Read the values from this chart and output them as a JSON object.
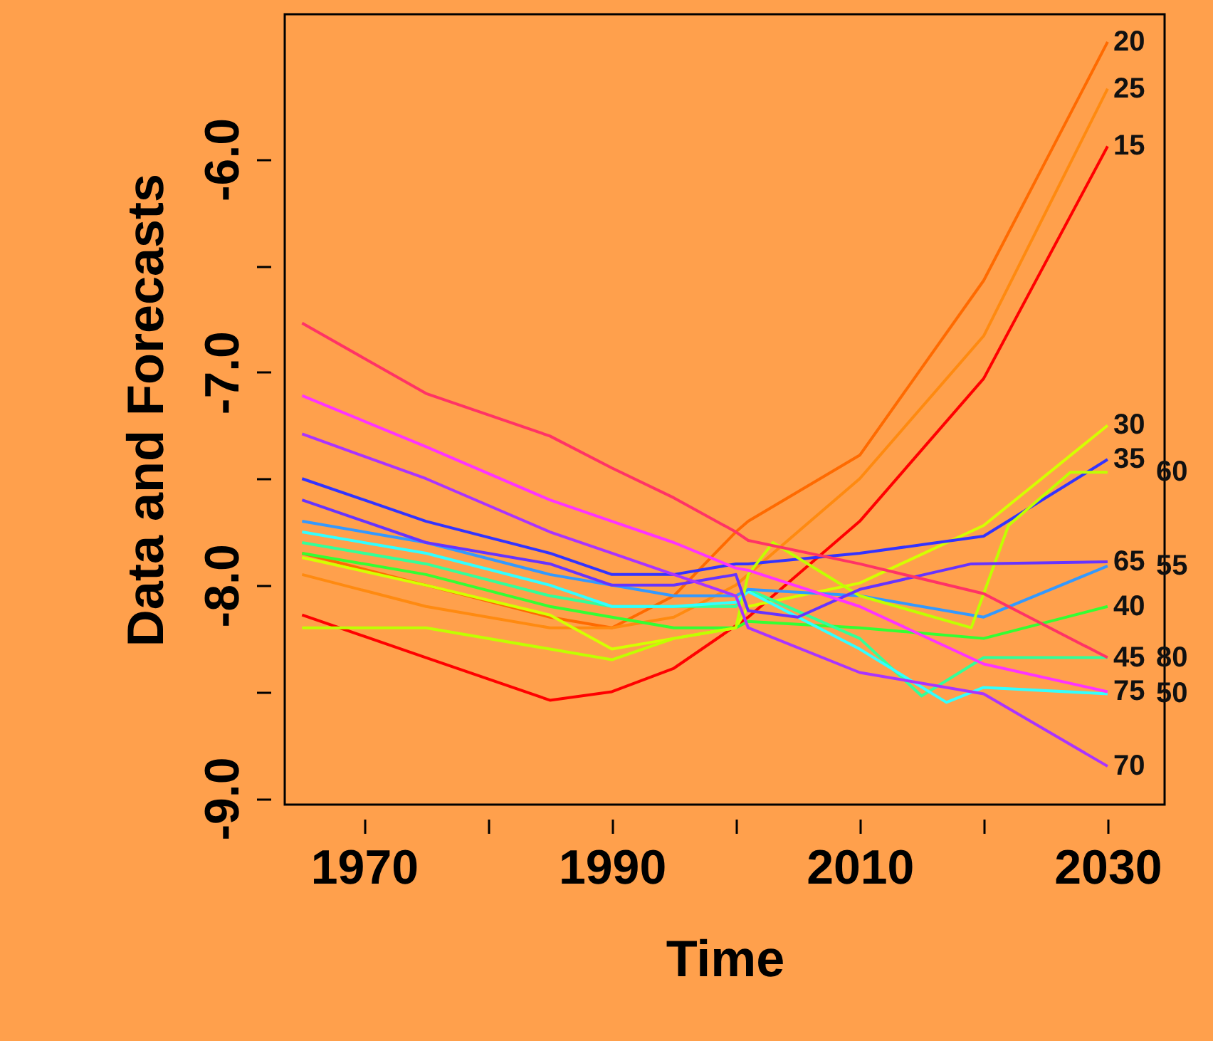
{
  "chart_data": {
    "type": "line",
    "xlabel": "Time",
    "ylabel": "Data and Forecasts",
    "line_style": "solid",
    "xlim": [
      1963.6,
      2034.6
    ],
    "ylim": [
      -9.03,
      -5.32
    ],
    "xticks": [
      1970,
      {
        "value": 1980,
        "label": null
      },
      1990,
      {
        "value": 2000,
        "label": null
      },
      2010,
      {
        "value": 2020,
        "label": null
      },
      2030
    ],
    "yticks": [
      {
        "value": -9,
        "label": "-9.0"
      },
      {
        "value": -8.5,
        "label": null
      },
      {
        "value": -8,
        "label": "-8.0"
      },
      {
        "value": -7.5,
        "label": null
      },
      {
        "value": -7,
        "label": "-7.0"
      },
      {
        "value": -6.5,
        "label": null
      },
      {
        "value": -6,
        "label": "-6.0"
      }
    ],
    "x": [
      1965,
      1975,
      1985,
      1990,
      1995,
      2000,
      2001,
      2010,
      2020,
      2030
    ],
    "series": [
      {
        "name": "15",
        "color": "#ff0000",
        "values": [
          -8.14,
          -8.34,
          -8.54,
          -8.5,
          -8.39,
          -8.19,
          -8.15,
          -7.7,
          -7.03,
          -5.94
        ]
      },
      {
        "name": "20",
        "color": "#ff6a00",
        "values": [
          -7.85,
          -8.0,
          -8.15,
          -8.2,
          -8.05,
          -7.75,
          -7.7,
          -7.39,
          -6.57,
          -5.45
        ]
      },
      {
        "name": "25",
        "color": "#ff8a10",
        "values": [
          -7.95,
          -8.1,
          -8.2,
          -8.2,
          -8.15,
          -8.0,
          -7.95,
          -7.5,
          -6.83,
          -5.67
        ]
      },
      {
        "name": "30",
        "color": "#d4ff00",
        "values": [
          -7.87,
          -8.0,
          -8.14,
          -8.3,
          -8.25,
          -8.2,
          -8.1,
          -7.99,
          -7.72,
          -7.25
        ]
      },
      {
        "name": "35",
        "color": "#3333ff",
        "values": [
          -7.5,
          -7.7,
          -7.85,
          -7.95,
          -7.95,
          -7.9,
          -7.9,
          -7.85,
          -7.77,
          -7.41
        ]
      },
      {
        "name": "40",
        "color": "#33ff33",
        "values": [
          -7.85,
          -7.95,
          -8.1,
          -8.15,
          -8.2,
          -8.2,
          -8.17,
          -8.2,
          -8.25,
          -8.1
        ]
      },
      {
        "name": "45",
        "color": "#33ff99",
        "x": [
          1965,
          1975,
          1985,
          1990,
          1995,
          2000,
          2001,
          2010,
          2015,
          2020,
          2030
        ],
        "values": [
          -7.8,
          -7.9,
          -8.05,
          -8.1,
          -8.1,
          -8.1,
          -8.02,
          -8.25,
          -8.52,
          -8.34,
          -8.34
        ]
      },
      {
        "name": "50",
        "color": "#33ffff",
        "x": [
          1965,
          1975,
          1985,
          1990,
          1995,
          2000,
          2001,
          2010,
          2017,
          2020,
          2030
        ],
        "values": [
          -7.75,
          -7.85,
          -8.0,
          -8.1,
          -8.1,
          -8.08,
          -8.03,
          -8.3,
          -8.55,
          -8.48,
          -8.51
        ]
      },
      {
        "name": "55",
        "color": "#3399ff",
        "values": [
          -7.7,
          -7.8,
          -7.95,
          -8.0,
          -8.05,
          -8.05,
          -8.02,
          -8.05,
          -8.15,
          -7.91
        ]
      },
      {
        "name": "60",
        "color": "#c0ff00",
        "x": [
          1965,
          1975,
          1985,
          1990,
          1995,
          2000,
          2001,
          2003,
          2010,
          2019,
          2022,
          2027,
          2030
        ],
        "values": [
          -8.2,
          -8.2,
          -8.3,
          -8.35,
          -8.25,
          -8.2,
          -7.95,
          -7.8,
          -8.05,
          -8.2,
          -7.72,
          -7.47,
          -7.47
        ]
      },
      {
        "name": "65",
        "color": "#6633ff",
        "x": [
          1965,
          1975,
          1985,
          1990,
          1995,
          2000,
          2001,
          2005,
          2010,
          2019,
          2030
        ],
        "values": [
          -7.6,
          -7.8,
          -7.9,
          -8.0,
          -8.0,
          -7.95,
          -8.12,
          -8.15,
          -8.02,
          -7.9,
          -7.89
        ]
      },
      {
        "name": "70",
        "color": "#aa33ff",
        "values": [
          -7.29,
          -7.5,
          -7.75,
          -7.85,
          -7.95,
          -8.05,
          -8.2,
          -8.41,
          -8.51,
          -8.85
        ]
      },
      {
        "name": "75",
        "color": "#ff33ff",
        "values": [
          -7.11,
          -7.35,
          -7.6,
          -7.7,
          -7.8,
          -7.92,
          -7.93,
          -8.1,
          -8.37,
          -8.5
        ]
      },
      {
        "name": "80",
        "color": "#ff3366",
        "values": [
          -6.77,
          -7.1,
          -7.3,
          -7.45,
          -7.59,
          -7.75,
          -7.79,
          -7.9,
          -8.04,
          -8.34
        ]
      }
    ]
  }
}
